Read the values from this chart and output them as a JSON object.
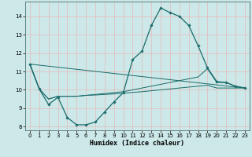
{
  "xlabel": "Humidex (Indice chaleur)",
  "xlim": [
    -0.5,
    23.5
  ],
  "ylim": [
    7.8,
    14.8
  ],
  "xticks": [
    0,
    1,
    2,
    3,
    4,
    5,
    6,
    7,
    8,
    9,
    10,
    11,
    12,
    13,
    14,
    15,
    16,
    17,
    18,
    19,
    20,
    21,
    22,
    23
  ],
  "yticks": [
    8,
    9,
    10,
    11,
    12,
    13,
    14
  ],
  "bg_color": "#cce8e8",
  "grid_color": "#e8b8b8",
  "line_color": "#1a6b6b",
  "main_curve": {
    "x": [
      0,
      1,
      2,
      3,
      4,
      5,
      6,
      7,
      8,
      9,
      10,
      11,
      12,
      13,
      14,
      15,
      16,
      17,
      18,
      19,
      20,
      21,
      22,
      23
    ],
    "y": [
      11.4,
      10.05,
      9.2,
      9.6,
      8.5,
      8.1,
      8.1,
      8.25,
      8.8,
      9.35,
      9.85,
      11.65,
      12.1,
      13.5,
      14.45,
      14.2,
      14.0,
      13.5,
      12.4,
      11.2,
      10.45,
      10.4,
      10.2,
      10.1
    ]
  },
  "trend1": {
    "x": [
      0,
      1,
      2,
      3,
      4,
      5,
      6,
      7,
      8,
      9,
      10,
      11,
      12,
      13,
      14,
      15,
      16,
      17,
      18,
      19,
      20,
      21,
      22,
      23
    ],
    "y": [
      11.4,
      10.05,
      9.5,
      9.65,
      9.65,
      9.65,
      9.7,
      9.75,
      9.8,
      9.85,
      9.9,
      10.0,
      10.1,
      10.2,
      10.3,
      10.4,
      10.5,
      10.6,
      10.7,
      11.15,
      10.4,
      10.4,
      10.2,
      10.1
    ]
  },
  "trend2": {
    "x": [
      0,
      1,
      2,
      3,
      4,
      5,
      6,
      7,
      8,
      9,
      10,
      11,
      12,
      13,
      14,
      15,
      16,
      17,
      18,
      19,
      20,
      21,
      22,
      23
    ],
    "y": [
      11.4,
      10.05,
      9.5,
      9.65,
      9.65,
      9.65,
      9.7,
      9.72,
      9.75,
      9.78,
      9.82,
      9.86,
      9.9,
      9.95,
      10.0,
      10.05,
      10.1,
      10.15,
      10.2,
      10.25,
      10.1,
      10.1,
      10.1,
      10.1
    ]
  },
  "trend3": {
    "x": [
      0,
      23
    ],
    "y": [
      11.4,
      10.1
    ]
  }
}
